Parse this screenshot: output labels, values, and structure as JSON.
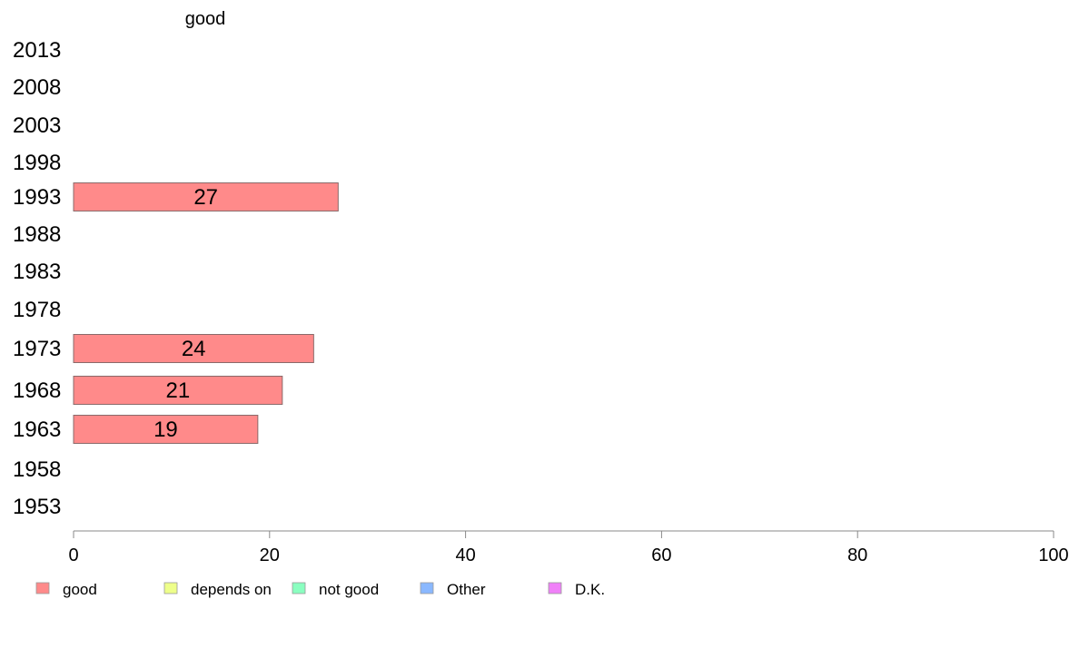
{
  "chart_data": {
    "type": "bar",
    "orientation": "horizontal",
    "header": "good",
    "categories": [
      "2013",
      "2008",
      "2003",
      "1998",
      "1993",
      "1988",
      "1983",
      "1978",
      "1973",
      "1968",
      "1963",
      "1958",
      "1953"
    ],
    "series": [
      {
        "name": "good",
        "color": "#ff8a8a",
        "values": [
          null,
          null,
          null,
          null,
          27,
          null,
          null,
          null,
          24.5,
          21.3,
          18.8,
          null,
          null
        ],
        "labels": [
          "",
          "",
          "",
          "",
          "27",
          "",
          "",
          "",
          "24",
          "21",
          "19",
          "",
          ""
        ]
      }
    ],
    "xlim": [
      0,
      100
    ],
    "xticks": [
      "0",
      "20",
      "40",
      "60",
      "80",
      "100"
    ],
    "xtick_values": [
      0,
      20,
      40,
      60,
      80,
      100
    ],
    "grid": false,
    "legend_position": "bottom",
    "legend": [
      {
        "label": "good",
        "color": "#ff8a8a"
      },
      {
        "label": "depends on",
        "color": "#eeff8a"
      },
      {
        "label": "not good",
        "color": "#8affc0"
      },
      {
        "label": "Other",
        "color": "#8ab8ff"
      },
      {
        "label": "D.K.",
        "color": "#f080f8"
      }
    ]
  }
}
